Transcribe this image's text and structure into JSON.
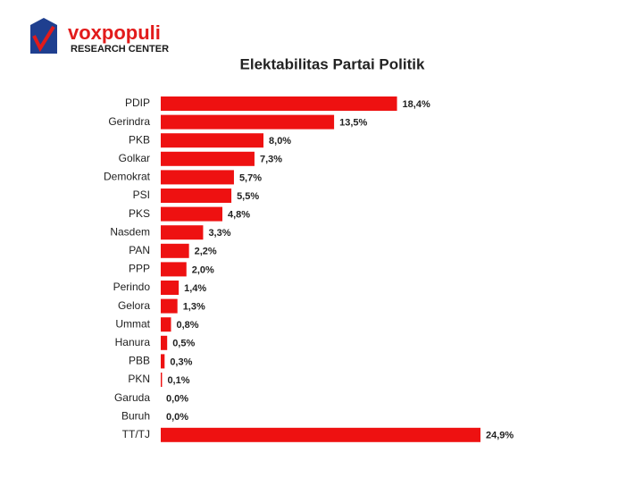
{
  "logo": {
    "name": "voxpopuli",
    "subtitle": "RESEARCH CENTER"
  },
  "chart_data": {
    "type": "bar",
    "orientation": "horizontal",
    "title": "Elektabilitas Partai Politik",
    "categories": [
      "PDIP",
      "Gerindra",
      "PKB",
      "Golkar",
      "Demokrat",
      "PSI",
      "PKS",
      "Nasdem",
      "PAN",
      "PPP",
      "Perindo",
      "Gelora",
      "Ummat",
      "Hanura",
      "PBB",
      "PKN",
      "Garuda",
      "Buruh",
      "TT/TJ"
    ],
    "values": [
      18.4,
      13.5,
      8.0,
      7.3,
      5.7,
      5.5,
      4.8,
      3.3,
      2.2,
      2.0,
      1.4,
      1.3,
      0.8,
      0.5,
      0.3,
      0.1,
      0.0,
      0.0,
      24.9
    ],
    "value_labels": [
      "18,4%",
      "13,5%",
      "8,0%",
      "7,3%",
      "5,7%",
      "5,5%",
      "4,8%",
      "3,3%",
      "2,2%",
      "2,0%",
      "1,4%",
      "1,3%",
      "0,8%",
      "0,5%",
      "0,3%",
      "0,1%",
      "0,0%",
      "0,0%",
      "24,9%"
    ],
    "color": "#ee1111"
  }
}
